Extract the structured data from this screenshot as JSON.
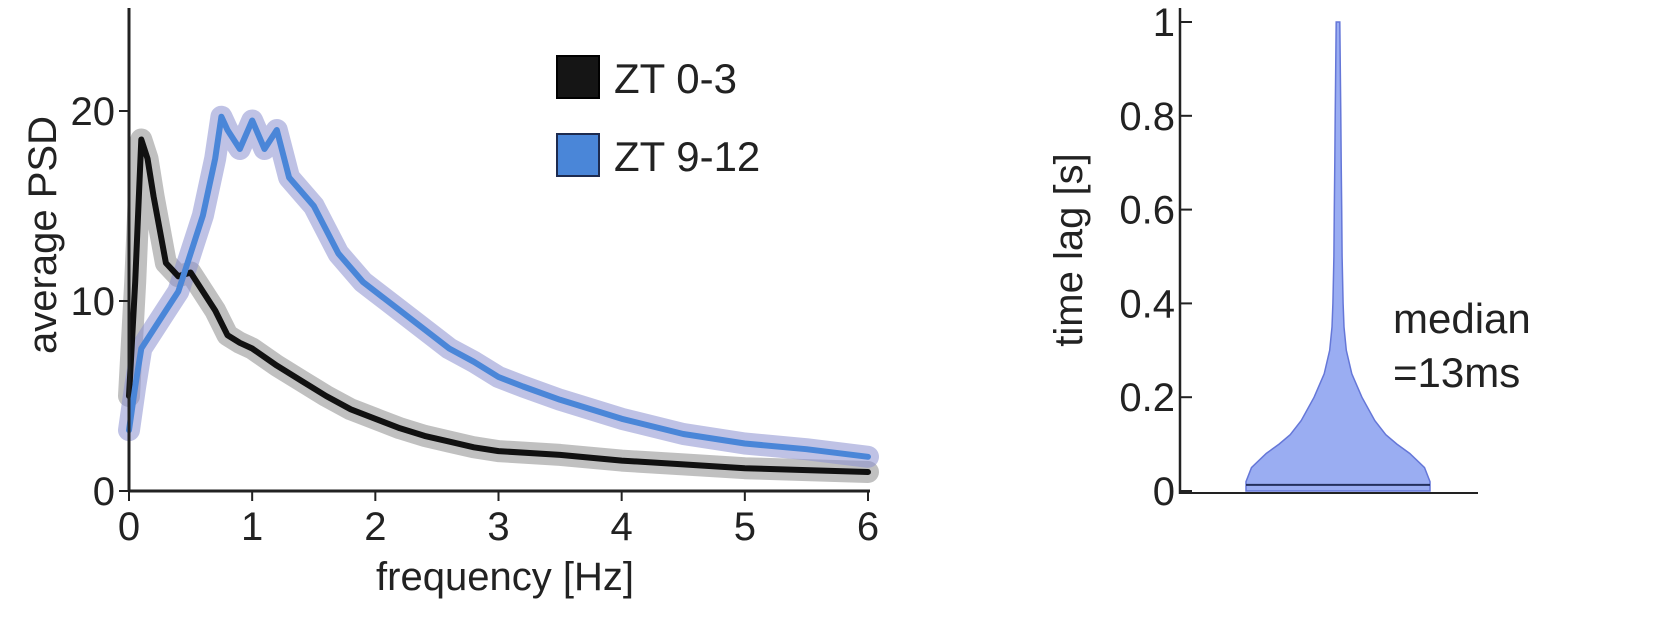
{
  "chart_data": [
    {
      "type": "line",
      "xlabel": "frequency [Hz]",
      "ylabel": "average PSD",
      "xlim": [
        0,
        6
      ],
      "ylim": [
        0,
        25
      ],
      "xticks": [
        "0",
        "1",
        "2",
        "3",
        "4",
        "5",
        "6"
      ],
      "yticks": [
        "0",
        "10",
        "20"
      ],
      "grid": false,
      "legend_position": "top-right",
      "series": [
        {
          "name": "ZT 0-3",
          "color": "#111111",
          "band_color": "#8c8c8c",
          "x": [
            0,
            0.05,
            0.1,
            0.15,
            0.2,
            0.3,
            0.4,
            0.5,
            0.6,
            0.7,
            0.8,
            0.9,
            1.0,
            1.2,
            1.4,
            1.6,
            1.8,
            2.0,
            2.2,
            2.4,
            2.6,
            2.8,
            3.0,
            3.5,
            4.0,
            4.5,
            5.0,
            5.5,
            6.0
          ],
          "y": [
            5.0,
            11.0,
            18.5,
            17.5,
            15.5,
            12.0,
            11.3,
            11.5,
            10.5,
            9.5,
            8.2,
            7.8,
            7.5,
            6.6,
            5.8,
            5.0,
            4.3,
            3.8,
            3.3,
            2.9,
            2.6,
            2.3,
            2.1,
            1.9,
            1.6,
            1.4,
            1.2,
            1.1,
            1.0
          ]
        },
        {
          "name": "ZT 9-12",
          "color": "#4a86d8",
          "band_color": "#8a8fd0",
          "x": [
            0,
            0.05,
            0.1,
            0.2,
            0.3,
            0.4,
            0.5,
            0.6,
            0.7,
            0.75,
            0.8,
            0.9,
            1.0,
            1.1,
            1.2,
            1.3,
            1.5,
            1.7,
            1.9,
            2.0,
            2.2,
            2.4,
            2.6,
            2.8,
            3.0,
            3.2,
            3.5,
            4.0,
            4.5,
            5.0,
            5.5,
            6.0
          ],
          "y": [
            3.2,
            5.5,
            7.5,
            8.5,
            9.5,
            10.5,
            12.5,
            14.5,
            17.5,
            19.7,
            19.0,
            18.0,
            19.5,
            18.0,
            19.0,
            16.5,
            15.0,
            12.5,
            11.0,
            10.5,
            9.5,
            8.5,
            7.5,
            6.8,
            6.0,
            5.5,
            4.8,
            3.8,
            3.0,
            2.5,
            2.2,
            1.8
          ]
        }
      ]
    },
    {
      "type": "violin",
      "ylabel": "time lag [s]",
      "ylim": [
        0,
        1
      ],
      "yticks": [
        "0",
        "0.2",
        "0.4",
        "0.6",
        "0.8",
        "1"
      ],
      "color": "#7d96ee",
      "median": 0.013,
      "annotation": [
        "median",
        "=13ms"
      ],
      "density": {
        "y": [
          0.0,
          0.02,
          0.05,
          0.08,
          0.1,
          0.12,
          0.15,
          0.2,
          0.25,
          0.3,
          0.35,
          0.4,
          0.5,
          0.6,
          0.7,
          0.8,
          0.9,
          1.0
        ],
        "halfwidth": [
          1.0,
          1.0,
          0.94,
          0.78,
          0.64,
          0.52,
          0.4,
          0.26,
          0.15,
          0.09,
          0.065,
          0.055,
          0.045,
          0.04,
          0.035,
          0.03,
          0.025,
          0.02
        ]
      }
    }
  ]
}
